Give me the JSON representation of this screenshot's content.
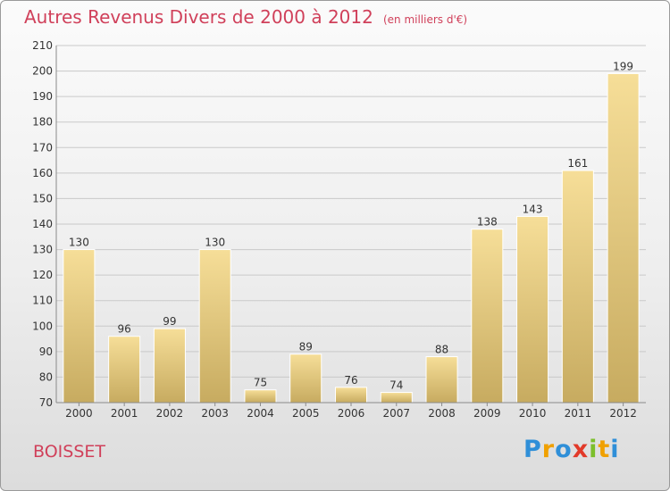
{
  "colors": {
    "title": "#d0405a",
    "bar_light": "#f6de98",
    "bar_dark": "#c7ab60",
    "grid": "#c9c9c9",
    "axis": "#8a8a8a",
    "text": "#333333"
  },
  "footer": {
    "place": "BOISSET",
    "logo_letters": [
      {
        "ch": "P",
        "color": "#2f8fd8"
      },
      {
        "ch": "r",
        "color": "#f0a000"
      },
      {
        "ch": "o",
        "color": "#2f8fd8"
      },
      {
        "ch": "x",
        "color": "#e23a2a"
      },
      {
        "ch": "i",
        "color": "#7cbf2c"
      },
      {
        "ch": "t",
        "color": "#f0a000"
      },
      {
        "ch": "i",
        "color": "#2f8fd8"
      }
    ]
  },
  "chart_data": {
    "type": "bar",
    "title": "Autres Revenus Divers de 2000 à 2012",
    "subtitle": "(en milliers d'€)",
    "categories": [
      "2000",
      "2001",
      "2002",
      "2003",
      "2004",
      "2005",
      "2006",
      "2007",
      "2008",
      "2009",
      "2010",
      "2011",
      "2012"
    ],
    "values": [
      130,
      96,
      99,
      130,
      75,
      89,
      76,
      74,
      88,
      138,
      143,
      161,
      199
    ],
    "ylim": [
      70,
      210
    ],
    "yticks": [
      70,
      80,
      90,
      100,
      110,
      120,
      130,
      140,
      150,
      160,
      170,
      180,
      190,
      200,
      210
    ],
    "grid": true,
    "data_labels": true,
    "xlabel": "",
    "ylabel": ""
  }
}
